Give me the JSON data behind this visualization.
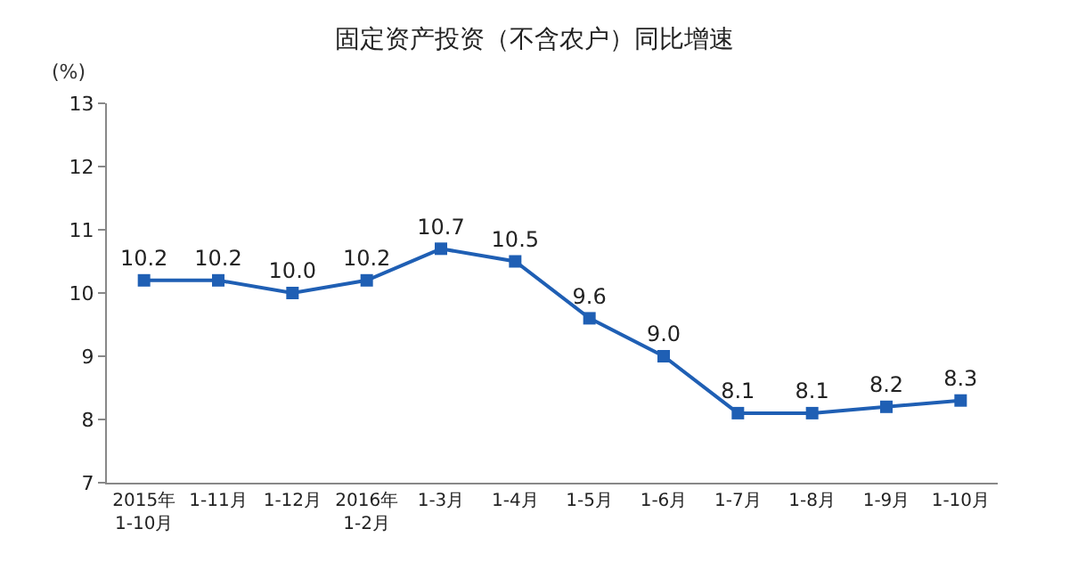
{
  "chart_data": {
    "type": "line",
    "title": "固定资产投资（不含农户）同比增速",
    "ylabel": "(%)",
    "categories": [
      "2015年\n1-10月",
      "1-11月",
      "1-12月",
      "2016年\n1-2月",
      "1-3月",
      "1-4月",
      "1-5月",
      "1-6月",
      "1-7月",
      "1-8月",
      "1-9月",
      "1-10月"
    ],
    "series": [
      {
        "color": "#1f5fb4",
        "values": [
          10.2,
          10.2,
          10.0,
          10.2,
          10.7,
          10.5,
          9.6,
          9.0,
          8.1,
          8.1,
          8.2,
          8.3
        ],
        "value_labels": [
          "10.2",
          "10.2",
          "10.0",
          "10.2",
          "10.7",
          "10.5",
          "9.6",
          "9.0",
          "8.1",
          "8.1",
          "8.2",
          "8.3"
        ]
      }
    ],
    "ylim": [
      7,
      13
    ],
    "yticks": [
      7,
      8,
      9,
      10,
      11,
      12,
      13
    ],
    "grid": false,
    "marker": "square",
    "line_style": "solid"
  }
}
